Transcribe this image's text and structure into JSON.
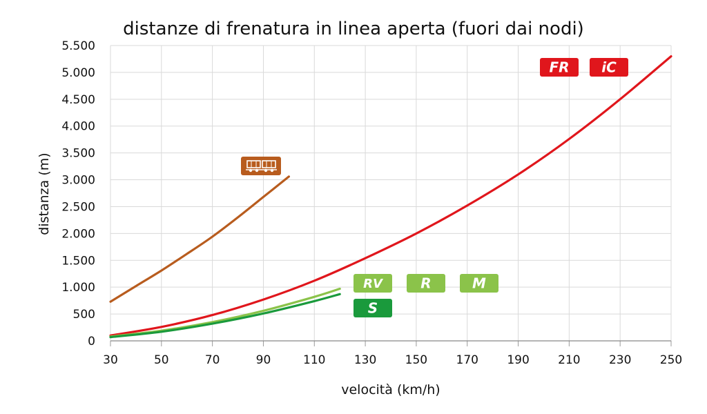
{
  "chart_data": {
    "type": "line",
    "title": "distanze di frenatura in linea aperta (fuori dai nodi)",
    "xlabel": "velocità (km/h)",
    "ylabel": "distanza (m)",
    "xlim": [
      30,
      250
    ],
    "ylim": [
      0,
      5500
    ],
    "x_ticks": [
      30,
      50,
      70,
      90,
      110,
      130,
      150,
      170,
      190,
      210,
      230,
      250
    ],
    "x_tick_labels": [
      "30",
      "50",
      "70",
      "90",
      "110",
      "130",
      "150",
      "170",
      "190",
      "210",
      "230",
      "250"
    ],
    "y_ticks": [
      0,
      500,
      1000,
      1500,
      2000,
      2500,
      3000,
      3500,
      4000,
      4500,
      5000,
      5500
    ],
    "y_tick_labels": [
      "0",
      "500",
      "1.000",
      "1.500",
      "2.000",
      "2.500",
      "3.000",
      "3.500",
      "4.000",
      "4.500",
      "5.000",
      "5.500"
    ],
    "grid": true,
    "series": [
      {
        "color": "#b85c1e",
        "icon": "freight-train-icon",
        "x": [
          30,
          40,
          50,
          60,
          70,
          80,
          90,
          100
        ],
        "values": [
          730,
          1020,
          1310,
          1620,
          1940,
          2300,
          2680,
          3060
        ]
      },
      {
        "color": "#e0161c",
        "icon": "fr-ic-icon",
        "badges": [
          "FR",
          "iC"
        ],
        "x": [
          30,
          50,
          70,
          90,
          110,
          130,
          150,
          170,
          190,
          210,
          230,
          250
        ],
        "values": [
          100,
          260,
          480,
          770,
          1120,
          1540,
          2000,
          2520,
          3100,
          3760,
          4500,
          5300
        ]
      },
      {
        "color": "#8bc34a",
        "icon": "rv-r-m-icon",
        "badges": [
          "RV",
          "R",
          "M"
        ],
        "x": [
          30,
          50,
          70,
          90,
          110,
          120
        ],
        "values": [
          80,
          190,
          350,
          560,
          820,
          970
        ]
      },
      {
        "color": "#1a9a3c",
        "icon": "s-icon",
        "badges": [
          "S"
        ],
        "x": [
          30,
          50,
          70,
          90,
          110,
          120
        ],
        "values": [
          70,
          170,
          320,
          510,
          740,
          870
        ]
      }
    ]
  }
}
